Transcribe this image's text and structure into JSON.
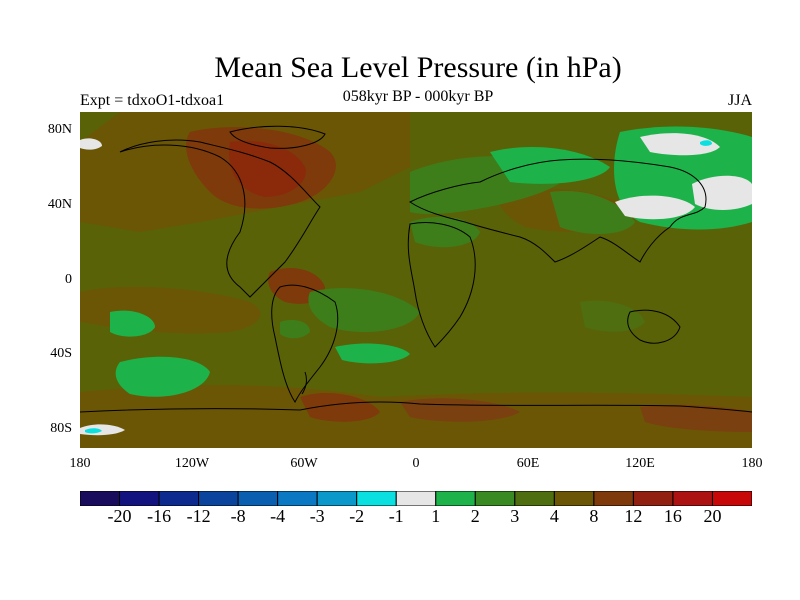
{
  "title": "Mean Sea Level Pressure (in hPa)",
  "experiment_label": "Expt = tdxoO1-tdxoa1",
  "period_label": "058kyr BP - 000kyr BP",
  "season_label": "JJA",
  "lat_labels": [
    "80N",
    "40N",
    "0",
    "40S",
    "80S"
  ],
  "lon_labels": [
    "180",
    "120W",
    "60W",
    "0",
    "60E",
    "120E",
    "180"
  ],
  "colorbar": {
    "colors": [
      "#1a0c5c",
      "#12137e",
      "#0d2a8e",
      "#0b449d",
      "#0b5fb0",
      "#0a78c3",
      "#0a98cb",
      "#0ae0df",
      "#e6e6e6",
      "#1db34a",
      "#3a8a23",
      "#4e6e10",
      "#6b5606",
      "#7e3a0a",
      "#922010",
      "#ac1212",
      "#c80808"
    ],
    "labels": [
      "-20",
      "-16",
      "-12",
      "-8",
      "-4",
      "-3",
      "-2",
      "-1",
      "1",
      "2",
      "3",
      "4",
      "8",
      "12",
      "16",
      "20"
    ]
  },
  "colors": {
    "base": "#5a6208",
    "brown": "#7a4010",
    "darkred": "#8a2a0a",
    "green": "#1db34a",
    "darkgreen": "#3e7e1a",
    "lightgray": "#e6e6e6",
    "cyan": "#0ae0df"
  }
}
